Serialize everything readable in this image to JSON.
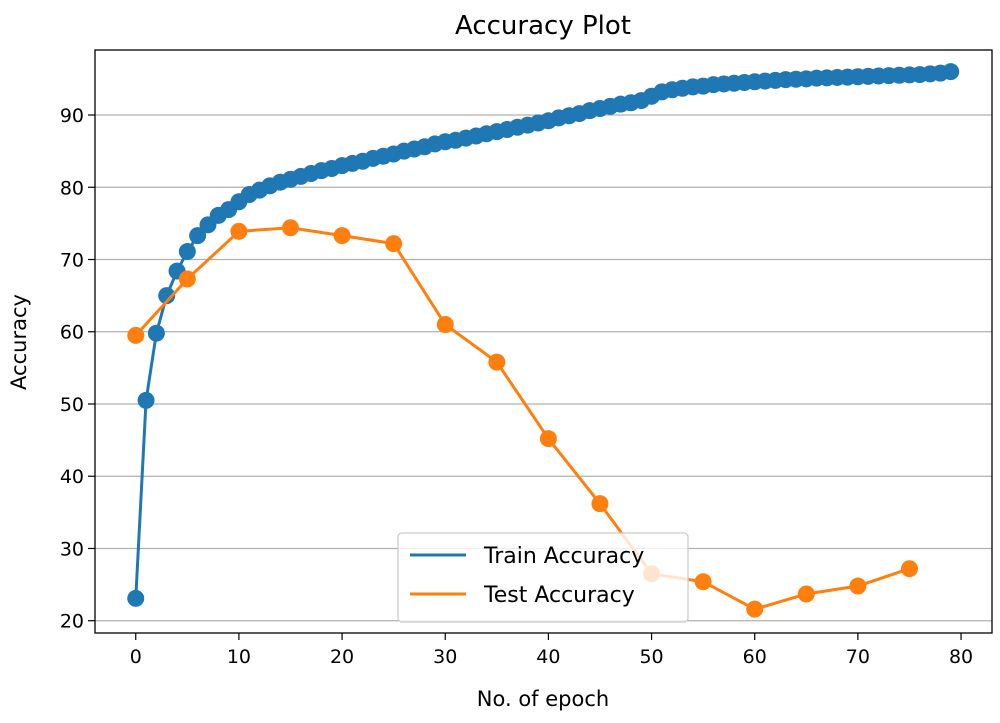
{
  "chart_data": {
    "type": "line",
    "title": "Accuracy Plot",
    "xlabel": "No. of epoch",
    "ylabel": "Accuracy",
    "xlim": [
      -3.95,
      83.0
    ],
    "ylim": [
      18.3,
      99.0
    ],
    "xticks": [
      0,
      10,
      20,
      30,
      40,
      50,
      60,
      70,
      80
    ],
    "yticks": [
      20,
      30,
      40,
      50,
      60,
      70,
      80,
      90
    ],
    "grid": "horizontal",
    "legend_position": "lower-center",
    "series": [
      {
        "name": "Train Accuracy",
        "color": "#1f77b4",
        "x": [
          0,
          1,
          2,
          3,
          4,
          5,
          6,
          7,
          8,
          9,
          10,
          11,
          12,
          13,
          14,
          15,
          16,
          17,
          18,
          19,
          20,
          21,
          22,
          23,
          24,
          25,
          26,
          27,
          28,
          29,
          30,
          31,
          32,
          33,
          34,
          35,
          36,
          37,
          38,
          39,
          40,
          41,
          42,
          43,
          44,
          45,
          46,
          47,
          48,
          49,
          50,
          51,
          52,
          53,
          54,
          55,
          56,
          57,
          58,
          59,
          60,
          61,
          62,
          63,
          64,
          65,
          66,
          67,
          68,
          69,
          70,
          71,
          72,
          73,
          74,
          75,
          76,
          77,
          78,
          79
        ],
        "y": [
          23.1,
          50.5,
          59.8,
          65.0,
          68.4,
          71.1,
          73.3,
          74.8,
          76.1,
          76.9,
          78.0,
          79.0,
          79.6,
          80.2,
          80.7,
          81.1,
          81.5,
          81.9,
          82.3,
          82.6,
          83.0,
          83.3,
          83.6,
          84.0,
          84.3,
          84.6,
          85.0,
          85.3,
          85.6,
          86.0,
          86.3,
          86.5,
          86.8,
          87.1,
          87.4,
          87.7,
          88.0,
          88.3,
          88.6,
          88.9,
          89.2,
          89.6,
          89.9,
          90.2,
          90.6,
          90.9,
          91.2,
          91.5,
          91.7,
          92.0,
          92.6,
          93.2,
          93.5,
          93.7,
          93.9,
          94.0,
          94.2,
          94.3,
          94.4,
          94.5,
          94.6,
          94.7,
          94.8,
          94.9,
          94.95,
          95.0,
          95.1,
          95.15,
          95.2,
          95.25,
          95.3,
          95.35,
          95.4,
          95.45,
          95.5,
          95.55,
          95.6,
          95.7,
          95.8,
          96.0
        ]
      },
      {
        "name": "Test Accuracy",
        "color": "#ff7f0e",
        "x": [
          0,
          5,
          10,
          15,
          20,
          25,
          30,
          35,
          40,
          45,
          50,
          55,
          60,
          65,
          70,
          75
        ],
        "y": [
          59.5,
          67.3,
          73.9,
          74.4,
          73.3,
          72.2,
          61.0,
          55.8,
          45.2,
          36.2,
          26.5,
          25.4,
          21.6,
          23.7,
          24.8,
          27.2
        ]
      }
    ]
  }
}
